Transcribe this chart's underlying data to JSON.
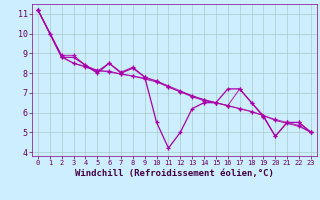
{
  "bg_color": "#cceeff",
  "grid_color": "#aacccc",
  "line_color": "#aa00aa",
  "xlim": [
    -0.5,
    23.5
  ],
  "ylim": [
    3.8,
    11.5
  ],
  "yticks": [
    4,
    5,
    6,
    7,
    8,
    9,
    10,
    11
  ],
  "xticks": [
    0,
    1,
    2,
    3,
    4,
    5,
    6,
    7,
    8,
    9,
    10,
    11,
    12,
    13,
    14,
    15,
    16,
    17,
    18,
    19,
    20,
    21,
    22,
    23
  ],
  "xlabel": "Windchill (Refroidissement éolien,°C)",
  "series1": [
    [
      0,
      11.2
    ],
    [
      1,
      10.0
    ],
    [
      2,
      8.8
    ],
    [
      3,
      8.8
    ],
    [
      4,
      8.4
    ],
    [
      5,
      8.0
    ],
    [
      6,
      8.5
    ],
    [
      7,
      8.0
    ],
    [
      8,
      8.25
    ],
    [
      9,
      7.8
    ],
    [
      10,
      5.5
    ],
    [
      11,
      4.2
    ],
    [
      12,
      5.0
    ],
    [
      13,
      6.2
    ],
    [
      14,
      6.5
    ],
    [
      15,
      6.5
    ],
    [
      16,
      7.2
    ],
    [
      17,
      7.2
    ],
    [
      18,
      6.5
    ],
    [
      19,
      5.8
    ],
    [
      20,
      4.8
    ],
    [
      21,
      5.5
    ],
    [
      22,
      5.5
    ],
    [
      23,
      5.0
    ]
  ],
  "series2": [
    [
      0,
      11.2
    ],
    [
      1,
      10.0
    ],
    [
      2,
      8.8
    ],
    [
      3,
      8.5
    ],
    [
      4,
      8.3
    ],
    [
      5,
      8.1
    ],
    [
      6,
      8.1
    ],
    [
      7,
      7.95
    ],
    [
      8,
      7.85
    ],
    [
      9,
      7.7
    ],
    [
      10,
      7.55
    ],
    [
      11,
      7.3
    ],
    [
      12,
      7.05
    ],
    [
      13,
      6.8
    ],
    [
      14,
      6.6
    ],
    [
      15,
      6.5
    ],
    [
      16,
      6.35
    ],
    [
      17,
      6.2
    ],
    [
      18,
      6.05
    ],
    [
      19,
      5.85
    ],
    [
      20,
      5.6
    ],
    [
      21,
      5.45
    ],
    [
      22,
      5.3
    ],
    [
      23,
      5.0
    ]
  ],
  "series3": [
    [
      0,
      11.2
    ],
    [
      2,
      8.9
    ],
    [
      3,
      8.9
    ],
    [
      4,
      8.4
    ],
    [
      5,
      8.1
    ],
    [
      6,
      8.5
    ],
    [
      7,
      8.05
    ],
    [
      8,
      8.3
    ],
    [
      9,
      7.8
    ],
    [
      10,
      7.6
    ],
    [
      11,
      7.3
    ],
    [
      12,
      7.05
    ],
    [
      13,
      6.85
    ],
    [
      14,
      6.65
    ],
    [
      15,
      6.5
    ],
    [
      16,
      6.35
    ],
    [
      17,
      7.2
    ],
    [
      18,
      6.5
    ],
    [
      19,
      5.85
    ],
    [
      20,
      4.8
    ],
    [
      21,
      5.5
    ],
    [
      22,
      5.5
    ],
    [
      23,
      5.0
    ]
  ],
  "series4": [
    [
      0,
      11.2
    ],
    [
      2,
      8.85
    ],
    [
      3,
      8.5
    ],
    [
      4,
      8.35
    ],
    [
      5,
      8.15
    ],
    [
      6,
      8.05
    ],
    [
      7,
      7.95
    ],
    [
      8,
      7.85
    ],
    [
      9,
      7.75
    ],
    [
      10,
      7.6
    ],
    [
      11,
      7.35
    ],
    [
      12,
      7.1
    ],
    [
      13,
      6.85
    ],
    [
      14,
      6.65
    ],
    [
      15,
      6.5
    ],
    [
      16,
      6.35
    ],
    [
      17,
      6.2
    ],
    [
      18,
      6.05
    ],
    [
      19,
      5.85
    ],
    [
      20,
      5.65
    ],
    [
      21,
      5.5
    ],
    [
      22,
      5.35
    ],
    [
      23,
      5.0
    ]
  ]
}
